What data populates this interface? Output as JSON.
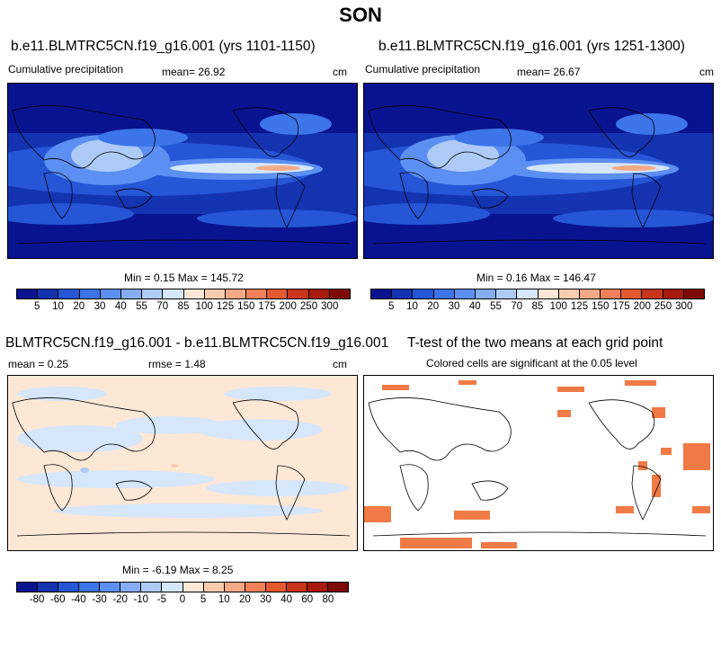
{
  "title": "SON",
  "panels": {
    "p1": {
      "title": "b.e11.BLMTRC5CN.f19_g16.001 (yrs 1101-1150)",
      "left_label": "Cumulative precipitation",
      "mean_label": "mean=  26.92",
      "units": "cm",
      "minmax": "Min =  0.15 Max = 145.72"
    },
    "p2": {
      "title": "b.e11.BLMTRC5CN.f19_g16.001 (yrs 1251-1300)",
      "left_label": "Cumulative precipitation",
      "mean_label": "mean=  26.67",
      "units": "cm",
      "minmax": "Min =  0.16 Max = 146.47"
    },
    "p3": {
      "title": "BLMTRC5CN.f19_g16.001 - b.e11.BLMTRC5CN.f19_g16.001",
      "mean_label": "mean =   0.25",
      "rmse_label": "rmse =   1.48",
      "units": "cm",
      "minmax": "Min = -6.19 Max =  8.25"
    },
    "p4": {
      "title": "T-test of the two means at each grid point",
      "subtitle": "Colored cells are significant at the 0.05 level",
      "significance_color": "#F07A45"
    }
  },
  "colorbars": {
    "precip": {
      "ticks": [
        "5",
        "10",
        "20",
        "30",
        "40",
        "55",
        "70",
        "85",
        "100",
        "125",
        "150",
        "175",
        "200",
        "250",
        "300"
      ],
      "colors": [
        "#0A138F",
        "#1433B0",
        "#2456D6",
        "#3C74EA",
        "#5C8FF2",
        "#86AEF6",
        "#AECBF8",
        "#D6E6FB",
        "#FDE8D6",
        "#F9CCAE",
        "#F5A986",
        "#F08158",
        "#E45A2F",
        "#C8351A",
        "#A81A0E",
        "#7E0A08"
      ]
    },
    "diff": {
      "ticks": [
        "-80",
        "-60",
        "-40",
        "-30",
        "-20",
        "-10",
        "-5",
        "0",
        "5",
        "10",
        "20",
        "30",
        "40",
        "60",
        "80"
      ],
      "colors": [
        "#0A138F",
        "#1433B0",
        "#2456D6",
        "#3C74EA",
        "#5C8FF2",
        "#86AEF6",
        "#AECBF8",
        "#D6E6FB",
        "#FDE8D6",
        "#F9CCAE",
        "#F5A986",
        "#F08158",
        "#E45A2F",
        "#C8351A",
        "#A81A0E",
        "#7E0A08"
      ]
    }
  }
}
